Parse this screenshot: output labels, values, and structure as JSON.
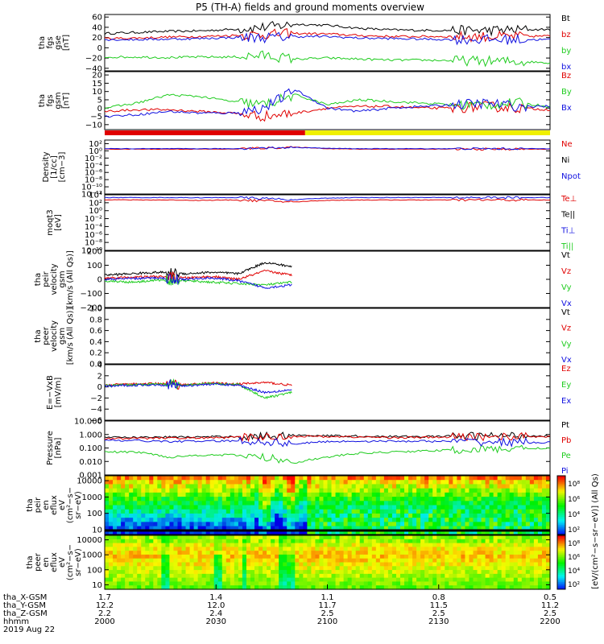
{
  "title": "P5 (TH-A) fields and ground moments overview",
  "colors": {
    "black": "#000000",
    "red": "#e00000",
    "green": "#1fcc1f",
    "blue": "#1010e0",
    "yellow": "#f0f000",
    "orange": "#ff7a00"
  },
  "chart_data": [
    {
      "type": "line",
      "ylabel": [
        "tha",
        "fgs",
        "gse",
        "[nT]"
      ],
      "ylim": [
        -45,
        65
      ],
      "yticks": [
        "60",
        "40",
        "20",
        "0",
        "−20",
        "−40"
      ],
      "ytick_values": [
        60,
        40,
        20,
        0,
        -20,
        -40
      ],
      "legend": [
        "Bt",
        "bz",
        "by",
        "bx"
      ],
      "legend_colors": [
        "#000000",
        "#e00000",
        "#1fcc1f",
        "#1010e0"
      ],
      "series": [
        {
          "name": "Bt",
          "values": [
            28,
            30,
            32,
            33,
            36,
            40,
            46,
            44,
            38,
            35,
            34,
            34,
            34,
            35,
            36
          ]
        },
        {
          "name": "bz",
          "values": [
            18,
            19,
            21,
            22,
            24,
            26,
            28,
            27,
            24,
            22,
            22,
            22,
            22,
            22,
            23
          ]
        },
        {
          "name": "by",
          "values": [
            -18,
            -18,
            -19,
            -18,
            -18,
            -15,
            -22,
            -20,
            -22,
            -24,
            -24,
            -25,
            -26,
            -27,
            -29
          ]
        },
        {
          "name": "bx",
          "values": [
            16,
            16,
            17,
            18,
            20,
            20,
            22,
            22,
            19,
            18,
            17,
            16,
            16,
            16,
            16
          ]
        }
      ]
    },
    {
      "type": "line",
      "ylabel": [
        "tha",
        "fgs",
        "gsm",
        "[nT]"
      ],
      "ylim": [
        -13,
        22
      ],
      "yticks": [
        "20",
        "15",
        "10",
        "5",
        "0",
        "−5",
        "−10"
      ],
      "ytick_values": [
        20,
        15,
        10,
        5,
        0,
        -5,
        -10
      ],
      "legend": [
        "Bz",
        "By",
        "Bx"
      ],
      "legend_colors": [
        "#e00000",
        "#1fcc1f",
        "#1010e0"
      ],
      "series": [
        {
          "name": "Bz",
          "values": [
            -2,
            -1,
            -1,
            -2,
            -3,
            -5,
            -3,
            0,
            1,
            1,
            0,
            0,
            1,
            0,
            -1
          ]
        },
        {
          "name": "By",
          "values": [
            0,
            3,
            8,
            7,
            4,
            2,
            8,
            2,
            5,
            4,
            3,
            2,
            2,
            3,
            1
          ]
        },
        {
          "name": "Bx",
          "values": [
            -5,
            -4,
            -2,
            -3,
            -3,
            0,
            11,
            0,
            -2,
            0,
            1,
            2,
            3,
            1,
            1
          ]
        }
      ]
    },
    {
      "type": "line",
      "ylabel": [
        "Density",
        "[1/cc]",
        "[cm−3]"
      ],
      "yscale": "log",
      "ylim": [
        1e-12,
        1000.0
      ],
      "yticks": [
        "10²",
        "10⁰",
        "10⁻²",
        "10⁻⁴",
        "10⁻⁶",
        "10⁻⁸",
        "10⁻¹⁰",
        "10⁻¹²"
      ],
      "ytick_values": [
        2,
        0,
        -2,
        -4,
        -6,
        -8,
        -10,
        -12
      ],
      "legend": [
        "Ne",
        "Ni",
        "Npot"
      ],
      "legend_colors": [
        "#e00000",
        "#000000",
        "#1010e0"
      ],
      "series": [
        {
          "name": "Ne",
          "values": [
            3,
            3,
            3,
            3,
            3,
            6,
            10,
            4,
            3,
            3,
            3,
            3,
            3,
            3,
            3
          ]
        },
        {
          "name": "Npot",
          "values": [
            4,
            4,
            4,
            4,
            4,
            6,
            9,
            5,
            4,
            4,
            4,
            4,
            4,
            4,
            4
          ]
        }
      ]
    },
    {
      "type": "line",
      "ylabel": [
        "moqt3",
        "[eV]"
      ],
      "yscale": "log",
      "ylim": [
        1e-10,
        10000.0
      ],
      "yticks": [
        "10⁴",
        "10²",
        "10⁰",
        "10⁻²",
        "10⁻⁴",
        "10⁻⁶",
        "10⁻⁸",
        "10⁻¹⁰"
      ],
      "ytick_values": [
        4,
        2,
        0,
        -2,
        -4,
        -6,
        -8,
        -10
      ],
      "legend": [
        "Te⊥",
        "Te||",
        "Ti⊥",
        "Ti||"
      ],
      "legend_colors": [
        "#e00000",
        "#000000",
        "#1010e0",
        "#1fcc1f"
      ],
      "series": [
        {
          "name": "Te⊥",
          "values": [
            600,
            500,
            500,
            400,
            500,
            300,
            150,
            400,
            500,
            500,
            500,
            500,
            500,
            500,
            500
          ]
        },
        {
          "name": "Ti⊥",
          "values": [
            2000,
            2000,
            2000,
            1800,
            2000,
            1200,
            500,
            1500,
            2000,
            2000,
            2000,
            2000,
            2000,
            2000,
            2000
          ]
        }
      ]
    },
    {
      "type": "line",
      "ylabel": [
        "tha",
        "peir",
        "velocity",
        "gsm",
        "[km/s (All Qs)]"
      ],
      "ylim": [
        -200,
        200
      ],
      "yticks": [
        "200",
        "100",
        "0",
        "−100",
        "−200"
      ],
      "ytick_values": [
        200,
        100,
        0,
        -100,
        -200
      ],
      "legend": [
        "Vt",
        "Vz",
        "Vy",
        "Vx"
      ],
      "legend_colors": [
        "#000000",
        "#e00000",
        "#1fcc1f",
        "#1010e0"
      ],
      "x_end_fraction": 0.42,
      "series": [
        {
          "name": "Vt",
          "values": [
            30,
            40,
            50,
            40,
            50,
            40,
            120,
            90
          ]
        },
        {
          "name": "Vz",
          "values": [
            10,
            15,
            20,
            10,
            20,
            0,
            60,
            30
          ]
        },
        {
          "name": "Vy",
          "values": [
            -10,
            -20,
            -5,
            -10,
            -20,
            -30,
            -40,
            -20
          ]
        },
        {
          "name": "Vx",
          "values": [
            0,
            5,
            10,
            0,
            10,
            -10,
            -60,
            -40
          ]
        }
      ]
    },
    {
      "type": "line",
      "ylabel": [
        "tha",
        "peer",
        "velocity",
        "gsm",
        "[km/s (All Qs)]"
      ],
      "ylim": [
        0,
        1
      ],
      "yticks": [
        "1.0",
        "0.8",
        "0.6",
        "0.4",
        "0.2",
        "0.0"
      ],
      "ytick_values": [
        1.0,
        0.8,
        0.6,
        0.4,
        0.2,
        0.0
      ],
      "legend": [
        "Vt",
        "Vz",
        "Vy",
        "Vx"
      ],
      "legend_colors": [
        "#000000",
        "#e00000",
        "#1fcc1f",
        "#1010e0"
      ],
      "series": []
    },
    {
      "type": "line",
      "ylabel": [
        "E=−VxB",
        "[mV/m]"
      ],
      "ylim": [
        -6,
        4
      ],
      "yticks": [
        "4",
        "2",
        "0",
        "−2",
        "−4",
        "−6"
      ],
      "ytick_values": [
        4,
        2,
        0,
        -2,
        -4,
        -6
      ],
      "legend": [
        "Ez",
        "Ey",
        "Ex"
      ],
      "legend_colors": [
        "#e00000",
        "#1fcc1f",
        "#1010e0"
      ],
      "x_end_fraction": 0.42,
      "series": [
        {
          "name": "Ez",
          "values": [
            0.3,
            0.5,
            0.6,
            0.4,
            0.7,
            0.5,
            0.8,
            0.3
          ]
        },
        {
          "name": "Ey",
          "values": [
            0.2,
            0.4,
            0.5,
            0.3,
            0.6,
            0.4,
            -2.0,
            -1.0
          ]
        },
        {
          "name": "Ex",
          "values": [
            0.1,
            0.3,
            0.4,
            0.2,
            0.5,
            0.3,
            -1.0,
            -0.5
          ]
        }
      ]
    },
    {
      "type": "line",
      "ylabel": [
        "Pressure",
        "[nPa]"
      ],
      "yscale": "log",
      "ylim": [
        0.001,
        10
      ],
      "yticks": [
        "10.000",
        "1.000",
        "0.100",
        "0.010",
        "0.001"
      ],
      "ytick_values": [
        1,
        0,
        -1,
        -2,
        -3
      ],
      "legend": [
        "Pt",
        "Pb",
        "Pe",
        "Pi"
      ],
      "legend_colors": [
        "#000000",
        "#e00000",
        "#1fcc1f",
        "#1010e0"
      ],
      "series": [
        {
          "name": "Pt",
          "values": [
            0.6,
            0.6,
            0.65,
            0.65,
            0.7,
            0.75,
            0.9,
            0.8,
            0.75,
            0.7,
            0.7,
            0.75,
            0.8,
            0.8,
            0.8
          ]
        },
        {
          "name": "Pb",
          "values": [
            0.5,
            0.5,
            0.55,
            0.55,
            0.6,
            0.65,
            0.75,
            0.7,
            0.65,
            0.6,
            0.6,
            0.65,
            0.7,
            0.7,
            0.7
          ]
        },
        {
          "name": "Pe",
          "values": [
            0.05,
            0.05,
            0.02,
            0.03,
            0.03,
            0.02,
            0.008,
            0.02,
            0.04,
            0.05,
            0.06,
            0.07,
            0.08,
            0.09,
            0.1
          ]
        },
        {
          "name": "Pi",
          "values": [
            0.35,
            0.35,
            0.3,
            0.32,
            0.33,
            0.3,
            0.2,
            0.3,
            0.32,
            0.32,
            0.32,
            0.3,
            0.28,
            0.26,
            0.25
          ]
        }
      ]
    },
    {
      "type": "heatmap",
      "ylabel": [
        "tha",
        "peir",
        "en",
        "eflux",
        "eV",
        "(cm²−s−",
        "sr−eV)"
      ],
      "yscale": "log",
      "ylim": [
        5,
        20000
      ],
      "yticks": [
        "10000",
        "1000",
        "100",
        "10"
      ],
      "ytick_values": [
        4,
        3,
        2,
        1
      ]
    },
    {
      "type": "heatmap",
      "ylabel": [
        "tha",
        "peer",
        "en",
        "eflux",
        "eV",
        "(cm²−s−",
        "sr−eV)"
      ],
      "yscale": "log",
      "ylim": [
        5,
        20000
      ],
      "yticks": [
        "10000",
        "1000",
        "100",
        "10"
      ],
      "ytick_values": [
        4,
        3,
        2,
        1
      ]
    }
  ],
  "colorbar": {
    "label": "[eV/(cm²−s−sr−eV)] (All Qs)",
    "top_ticks": [
      "10⁸",
      "10⁶",
      "10⁴",
      "10²"
    ],
    "bottom_ticks": [
      "10⁸",
      "10⁶",
      "10⁴",
      "10²"
    ]
  },
  "xaxis": {
    "rows": [
      {
        "label": "tha_X-GSM",
        "values": [
          "1.7",
          "1.4",
          "1.1",
          "0.8",
          "0.5"
        ]
      },
      {
        "label": "tha_Y-GSM",
        "values": [
          "12.2",
          "12.0",
          "11.7",
          "11.5",
          "11.2"
        ]
      },
      {
        "label": "tha_Z-GSM",
        "values": [
          "2.2",
          "2.4",
          "2.5",
          "2.5",
          "2.5"
        ]
      },
      {
        "label": "hhmm",
        "values": [
          "2000",
          "2030",
          "2100",
          "2130",
          "2200"
        ]
      }
    ],
    "date": "2019 Aug 22"
  }
}
